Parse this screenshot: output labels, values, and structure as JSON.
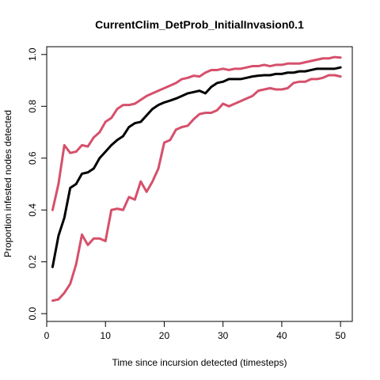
{
  "chart_data": {
    "type": "line",
    "title": "CurrentClim_DetProb_InitialInvasion0.1",
    "xlabel": "Time since incursion detected (timesteps)",
    "ylabel": "Proportion infested nodes detected",
    "xlim": [
      0,
      52
    ],
    "ylim": [
      -0.03,
      1.03
    ],
    "x_ticks": [
      0,
      10,
      20,
      30,
      40,
      50
    ],
    "y_ticks": [
      0.0,
      0.2,
      0.4,
      0.6,
      0.8,
      1.0
    ],
    "y_tick_labels": [
      "0.0",
      "0.2",
      "0.4",
      "0.6",
      "0.8",
      "1.0"
    ],
    "legend": "none",
    "grid": false,
    "x": [
      1,
      2,
      3,
      4,
      5,
      6,
      7,
      8,
      9,
      10,
      11,
      12,
      13,
      14,
      15,
      16,
      17,
      18,
      19,
      20,
      21,
      22,
      23,
      24,
      25,
      26,
      27,
      28,
      29,
      30,
      31,
      32,
      33,
      34,
      35,
      36,
      37,
      38,
      39,
      40,
      41,
      42,
      43,
      44,
      45,
      46,
      47,
      48,
      49,
      50
    ],
    "series": [
      {
        "color": "#d6506b",
        "values": [
          0.4,
          0.5,
          0.65,
          0.62,
          0.625,
          0.65,
          0.645,
          0.68,
          0.7,
          0.74,
          0.755,
          0.79,
          0.805,
          0.805,
          0.81,
          0.825,
          0.84,
          0.85,
          0.86,
          0.87,
          0.88,
          0.89,
          0.905,
          0.91,
          0.918,
          0.915,
          0.93,
          0.94,
          0.94,
          0.945,
          0.94,
          0.945,
          0.945,
          0.95,
          0.955,
          0.955,
          0.96,
          0.955,
          0.96,
          0.96,
          0.965,
          0.965,
          0.965,
          0.97,
          0.975,
          0.98,
          0.985,
          0.985,
          0.99,
          0.988
        ]
      },
      {
        "color": "#000000",
        "values": [
          0.18,
          0.3,
          0.37,
          0.485,
          0.5,
          0.54,
          0.545,
          0.56,
          0.6,
          0.625,
          0.65,
          0.67,
          0.685,
          0.72,
          0.735,
          0.74,
          0.765,
          0.79,
          0.805,
          0.815,
          0.822,
          0.83,
          0.84,
          0.85,
          0.855,
          0.86,
          0.85,
          0.875,
          0.89,
          0.895,
          0.905,
          0.905,
          0.905,
          0.91,
          0.915,
          0.918,
          0.92,
          0.92,
          0.925,
          0.925,
          0.93,
          0.93,
          0.935,
          0.935,
          0.94,
          0.945,
          0.945,
          0.945,
          0.945,
          0.95
        ]
      },
      {
        "color": "#d6506b",
        "values": [
          0.05,
          0.055,
          0.08,
          0.115,
          0.19,
          0.305,
          0.265,
          0.29,
          0.29,
          0.28,
          0.4,
          0.405,
          0.4,
          0.45,
          0.44,
          0.51,
          0.47,
          0.51,
          0.56,
          0.66,
          0.67,
          0.71,
          0.72,
          0.725,
          0.75,
          0.77,
          0.775,
          0.775,
          0.785,
          0.81,
          0.8,
          0.81,
          0.82,
          0.83,
          0.84,
          0.86,
          0.865,
          0.87,
          0.865,
          0.865,
          0.87,
          0.89,
          0.895,
          0.895,
          0.905,
          0.905,
          0.91,
          0.92,
          0.92,
          0.915
        ]
      }
    ]
  }
}
